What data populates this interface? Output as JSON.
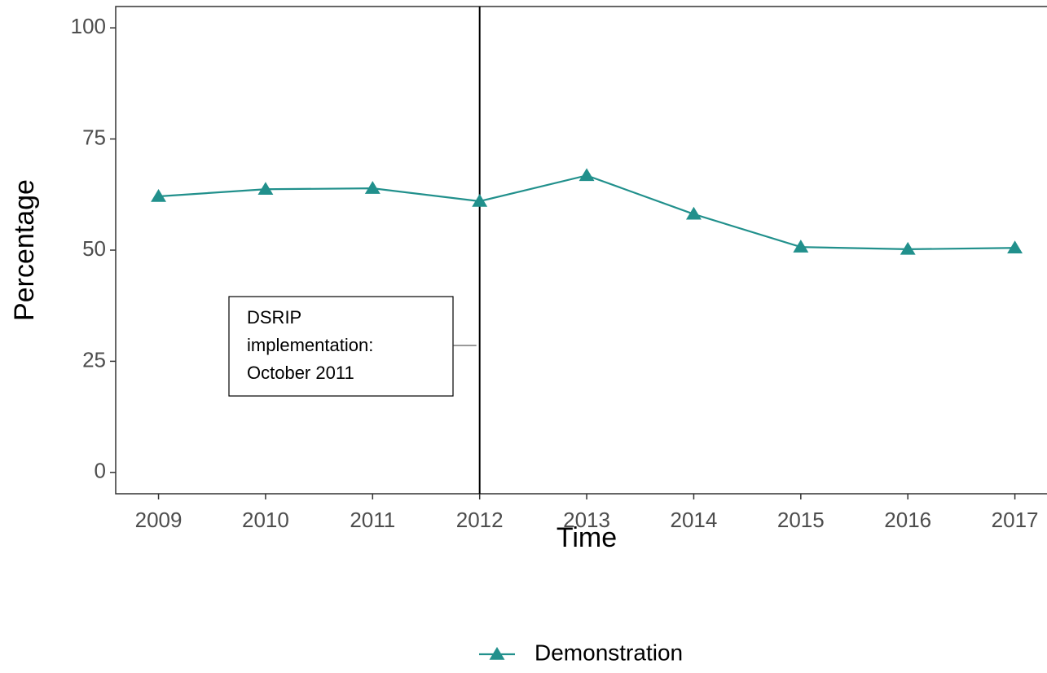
{
  "chart_data": {
    "type": "line",
    "xlabel": "Time",
    "ylabel": "Percentage",
    "x": [
      2009,
      2010,
      2011,
      2012,
      2013,
      2014,
      2015,
      2016,
      2017
    ],
    "series": [
      {
        "name": "Demonstration",
        "color": "#21908c",
        "values": [
          62.1,
          63.7,
          63.9,
          61.0,
          66.8,
          58.1,
          50.7,
          50.2,
          50.5
        ]
      }
    ],
    "xlim": [
      2008.6,
      2017.3
    ],
    "xticks": [
      2009,
      2010,
      2011,
      2012,
      2013,
      2014,
      2015,
      2016,
      2017
    ],
    "ylim": [
      -4.8,
      104.8
    ],
    "yticks": [
      0,
      25,
      50,
      75,
      100
    ],
    "vline": 2012,
    "annotation": [
      "DSRIP",
      "implementation:",
      "October 2011"
    ],
    "grid": false,
    "legend": "bottom"
  }
}
